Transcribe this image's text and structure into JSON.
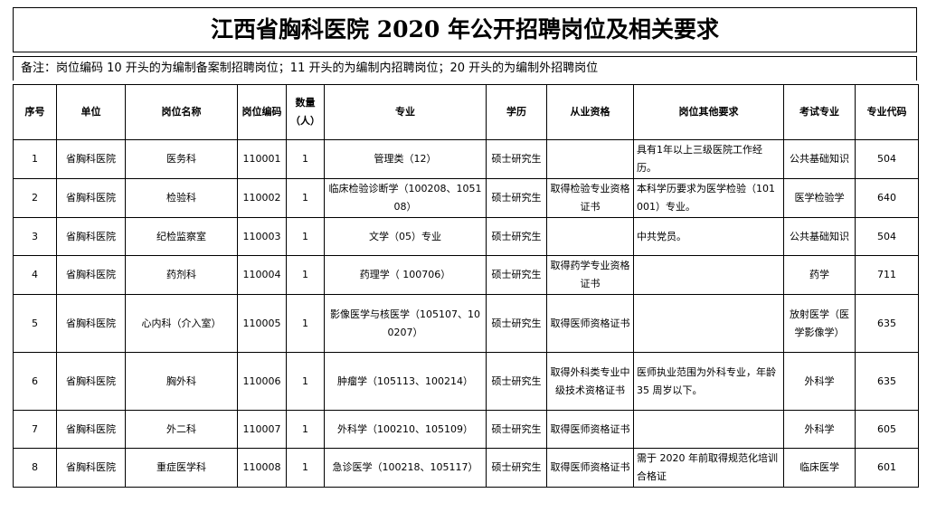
{
  "header": {
    "title": "江西省胸科医院 2020 年公开招聘岗位及相关要求",
    "note": "备注：岗位编码 10 开头的为编制备案制招聘岗位；11 开头的为编制内招聘岗位；20 开头的为编制外招聘岗位"
  },
  "table": {
    "columns": [
      "序号",
      "单位",
      "岗位名称",
      "岗位编码",
      "数量（人）",
      "专业",
      "学历",
      "从业资格",
      "岗位其他要求",
      "考试专业",
      "专业代码"
    ],
    "rows": [
      [
        "1",
        "省胸科医院",
        "医务科",
        "110001",
        "1",
        "管理类（12）",
        "硕士研究生",
        null,
        "具有1年以上三级医院工作经历。",
        "公共基础知识",
        "504"
      ],
      [
        "2",
        "省胸科医院",
        "检验科",
        "110002",
        "1",
        "临床检验诊断学（100208、105108）",
        "硕士研究生",
        "取得检验专业资格证书",
        "本科学历要求为医学检验（101001）专业。",
        "医学检验学",
        "640"
      ],
      [
        "3",
        "省胸科医院",
        "纪检监察室",
        "110003",
        "1",
        "文学（05）专业",
        "硕士研究生",
        null,
        "中共党员。",
        "公共基础知识",
        "504"
      ],
      [
        "4",
        "省胸科医院",
        "药剂科",
        "110004",
        "1",
        "药理学（ 100706）",
        "硕士研究生",
        "取得药学专业资格证书",
        null,
        "药学",
        "711"
      ],
      [
        "5",
        "省胸科医院",
        "心内科（介入室）",
        "110005",
        "1",
        "影像医学与核医学（105107、100207）",
        "硕士研究生",
        "取得医师资格证书",
        null,
        "放射医学（医学影像学）",
        "635"
      ],
      [
        "6",
        "省胸科医院",
        "胸外科",
        "110006",
        "1",
        "肿瘤学（105113、100214）",
        "硕士研究生",
        "取得外科类专业中级技术资格证书",
        "医师执业范围为外科专业，年龄 35 周岁以下。",
        "外科学",
        "635"
      ],
      [
        "7",
        "省胸科医院",
        "外二科",
        "110007",
        "1",
        "外科学（100210、105109）",
        "硕士研究生",
        "取得医师资格证书",
        null,
        "外科学",
        "605"
      ],
      [
        "8",
        "省胸科医院",
        "重症医学科",
        "110008",
        "1",
        "急诊医学（100218、105117）",
        "硕士研究生",
        "取得医师资格证书",
        "需于 2020 年前取得规范化培训合格证",
        "临床医学",
        "601"
      ]
    ]
  }
}
